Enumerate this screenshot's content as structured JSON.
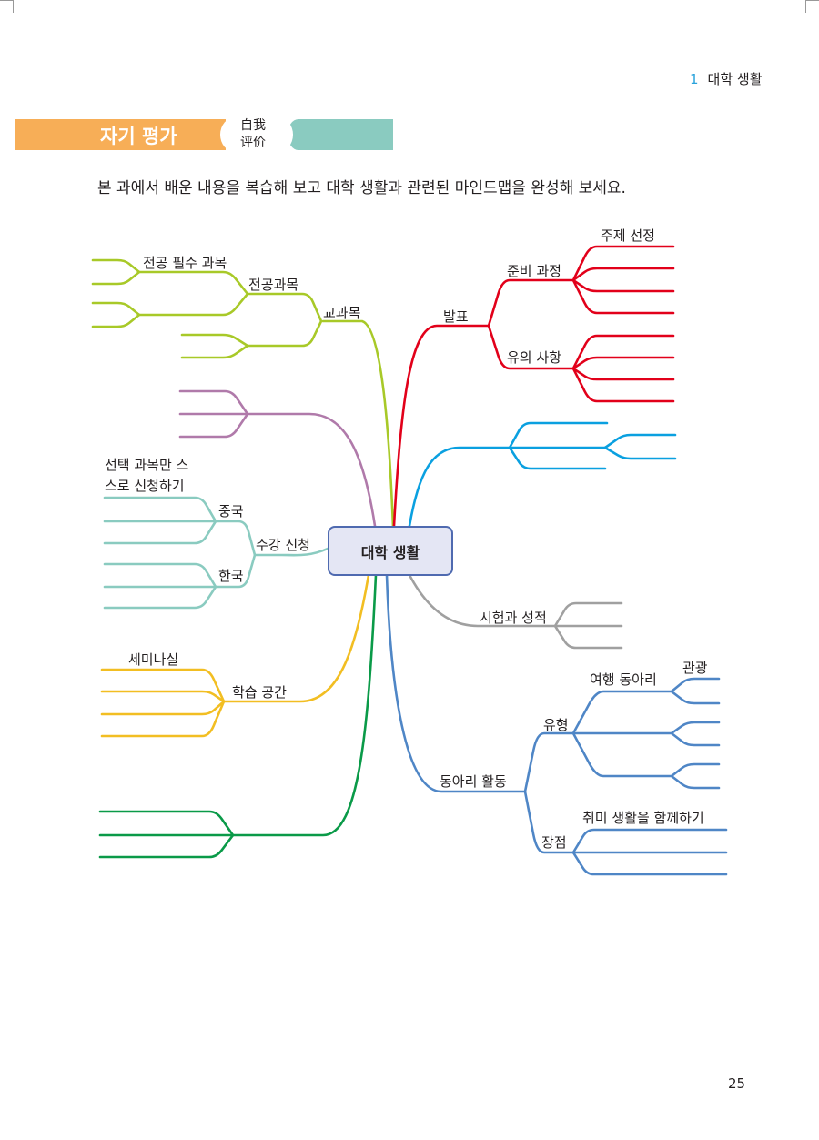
{
  "header": {
    "chapter_number": "1",
    "chapter_title": "대학 생활"
  },
  "banner": {
    "title": "자기 평가",
    "subtitle_line1": "自我",
    "subtitle_line2": "评价"
  },
  "instruction": "본 과에서 배운 내용을 복습해 보고 대학 생활과 관련된 마인드맵을 완성해 보세요.",
  "mindmap": {
    "center": "대학 생활",
    "colors": {
      "lime": "#a8c928",
      "purple": "#b07aaa",
      "mint": "#8acbc0",
      "yellow": "#f2be22",
      "green": "#0a9a48",
      "red": "#e2001a",
      "skyblue": "#0aa0e0",
      "gray": "#a0a0a0",
      "blue": "#4f86c6"
    },
    "labels": {
      "major_required": "전공 필수 과목",
      "major": "전공과목",
      "curriculum": "교과목",
      "elective_1": "선택 과목만 스",
      "elective_2": "스로 신청하기",
      "china": "중국",
      "korea": "한국",
      "registration": "수강 신청",
      "seminar_room": "세미나실",
      "study_space": "학습 공간",
      "presentation": "발표",
      "preparation": "준비 과정",
      "cautions": "유의 사항",
      "topic_selection": "주제 선정",
      "exams_grades": "시험과 성적",
      "club_activities": "동아리 활동",
      "types": "유형",
      "advantages": "장점",
      "travel_club": "여행 동아리",
      "sightseeing": "관광",
      "share_hobbies": "취미 생활을 함께하기"
    }
  },
  "page_number": "25"
}
